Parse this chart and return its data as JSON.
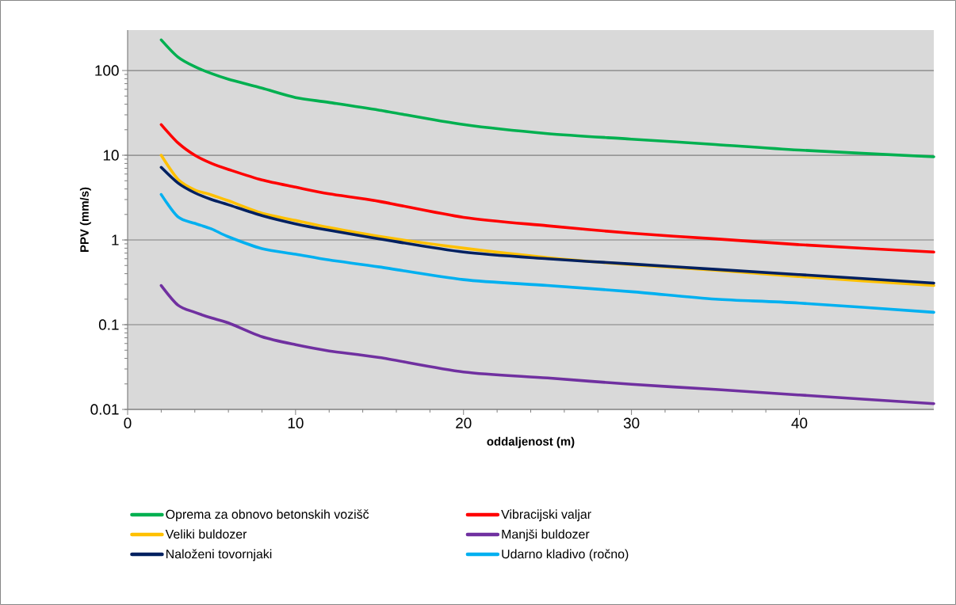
{
  "chart_data": {
    "type": "line",
    "xlabel": "oddaljenost (m)",
    "ylabel": "PPV (mm/s)",
    "x": [
      2,
      3,
      4,
      5,
      6,
      8,
      10,
      12,
      15,
      20,
      25,
      30,
      35,
      40,
      48
    ],
    "series": [
      {
        "name": "Oprema za obnovo betonskih vozišč",
        "color": "#00b050",
        "values": [
          230,
          144,
          111,
          92,
          79,
          62,
          48,
          42,
          34,
          23,
          18,
          15.5,
          13.4,
          11.5,
          9.6
        ]
      },
      {
        "name": "Vibracijski valjar",
        "color": "#ff0000",
        "values": [
          23,
          14,
          10,
          8,
          6.8,
          5.1,
          4.2,
          3.5,
          2.85,
          1.85,
          1.47,
          1.2,
          1.03,
          0.88,
          0.72
        ]
      },
      {
        "name": "Veliki buldozer",
        "color": "#ffc000",
        "values": [
          10,
          5.2,
          3.9,
          3.4,
          2.9,
          2.07,
          1.7,
          1.4,
          1.1,
          0.8,
          0.62,
          0.51,
          0.44,
          0.37,
          0.29
        ]
      },
      {
        "name": "Manjši buldozer",
        "color": "#7030a0",
        "values": [
          0.29,
          0.17,
          0.14,
          0.12,
          0.105,
          0.072,
          0.058,
          0.049,
          0.041,
          0.0277,
          0.0235,
          0.0198,
          0.0172,
          0.0148,
          0.0117
        ]
      },
      {
        "name": "Naloženi tovornjaki",
        "color": "#002060",
        "values": [
          7.2,
          4.7,
          3.6,
          3.0,
          2.6,
          1.94,
          1.55,
          1.3,
          1.03,
          0.72,
          0.6,
          0.52,
          0.45,
          0.39,
          0.31
        ]
      },
      {
        "name": "Udarno kladivo (ročno)",
        "color": "#00b0f0",
        "values": [
          3.44,
          1.87,
          1.57,
          1.35,
          1.09,
          0.79,
          0.68,
          0.58,
          0.48,
          0.34,
          0.29,
          0.245,
          0.2,
          0.18,
          0.14
        ]
      }
    ],
    "xlim": [
      0,
      48
    ],
    "xticks": [
      0,
      10,
      20,
      30,
      40
    ],
    "ylim": [
      0.01,
      300
    ],
    "yticks": [
      0.01,
      0.1,
      1,
      10,
      100
    ],
    "log": "y",
    "grid": "y",
    "legend": "bottom",
    "marker": "none",
    "line_style": "solid"
  }
}
